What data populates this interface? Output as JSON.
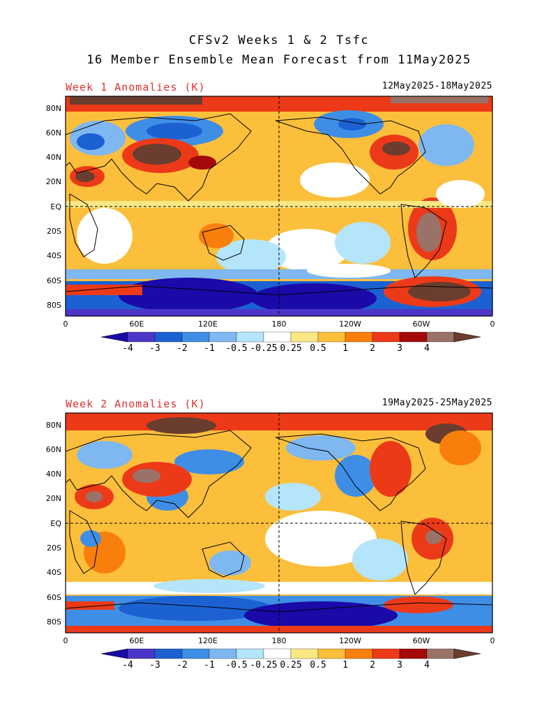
{
  "header": {
    "title_line1": "CFSv2 Weeks 1 & 2 Tsfc",
    "title_line2": "16 Member Ensemble Mean Forecast from 11May2025"
  },
  "panels": [
    {
      "title": "Week 1 Anomalies (K)",
      "dates": "12May2025-18May2025"
    },
    {
      "title": "Week 2 Anomalies (K)",
      "dates": "19May2025-25May2025"
    }
  ],
  "axes": {
    "lat_ticks": [
      "80N",
      "60N",
      "40N",
      "20N",
      "EQ",
      "20S",
      "40S",
      "60S",
      "80S"
    ],
    "lon_ticks": [
      "0",
      "60E",
      "120E",
      "180",
      "120W",
      "60W",
      "0"
    ]
  },
  "colorbar": {
    "labels": [
      "-4",
      "-3",
      "-2",
      "-1",
      "-0.5",
      "-0.25",
      "0.25",
      "0.5",
      "1",
      "2",
      "3",
      "4"
    ],
    "colors": [
      "#1a0aa8",
      "#4a37c8",
      "#1c61d2",
      "#3f8ee6",
      "#7fb7f0",
      "#b5e5fb",
      "#ffffff",
      "#fbe784",
      "#fcbf3c",
      "#f97f0c",
      "#ec3a18",
      "#a40a0a",
      "#9a7268",
      "#6b3d2e"
    ]
  },
  "colors": {
    "title_red": "#e03030",
    "land_line": "#000000",
    "dash_line": "#000000"
  }
}
